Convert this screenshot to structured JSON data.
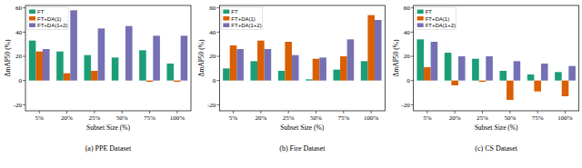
{
  "chart_data": [
    {
      "type": "bar",
      "title": "(a) PPE Dataset",
      "x_label": "Subset Size (%)",
      "y_label": "ΔmAP50 (%)",
      "categories": [
        "5%",
        "20%",
        "25%",
        "50%",
        "75%",
        "100%"
      ],
      "series": [
        {
          "name": "FT",
          "color": "#1b9e77",
          "values": [
            33,
            24,
            21,
            19,
            25,
            14
          ]
        },
        {
          "name": "FT+DA(1)",
          "color": "#d95f02",
          "values": [
            24,
            6,
            8,
            0,
            -1,
            -1
          ]
        },
        {
          "name": "FT+DA(1+2)",
          "color": "#7570b3",
          "values": [
            26,
            58,
            43,
            45,
            37,
            37
          ]
        }
      ],
      "ylim": [
        -25,
        62
      ],
      "yticks": [
        -20,
        0,
        20,
        40,
        60
      ],
      "grid": false,
      "legend": "upper left"
    },
    {
      "type": "bar",
      "title": "(b) Fire Dataset",
      "x_label": "Subset Size (%)",
      "y_label": "ΔmAP50 (%)",
      "categories": [
        "5%",
        "20%",
        "25%",
        "50%",
        "75%",
        "100%"
      ],
      "series": [
        {
          "name": "FT",
          "color": "#1b9e77",
          "values": [
            10,
            16,
            8,
            1,
            9,
            16
          ]
        },
        {
          "name": "FT+DA(1)",
          "color": "#d95f02",
          "values": [
            29,
            33,
            32,
            18,
            20,
            54
          ]
        },
        {
          "name": "FT+DA(1+2)",
          "color": "#7570b3",
          "values": [
            26,
            26,
            21,
            19,
            34,
            50
          ]
        }
      ],
      "ylim": [
        -25,
        62
      ],
      "yticks": [
        -20,
        0,
        20,
        40,
        60
      ],
      "grid": false,
      "legend": "upper left"
    },
    {
      "type": "bar",
      "title": "(c) CS Dataset",
      "x_label": "Subset Size (%)",
      "y_label": "ΔmAP50 (%)",
      "categories": [
        "5%",
        "20%",
        "25%",
        "50%",
        "75%",
        "100%"
      ],
      "series": [
        {
          "name": "FT",
          "color": "#1b9e77",
          "values": [
            34,
            23,
            18,
            8,
            5,
            7
          ]
        },
        {
          "name": "FT+DA(1)",
          "color": "#d95f02",
          "values": [
            11,
            -4,
            -1,
            -16,
            -9,
            -13
          ]
        },
        {
          "name": "FT+DA(1+2)",
          "color": "#7570b3",
          "values": [
            32,
            20,
            20,
            16,
            14,
            12
          ]
        }
      ],
      "ylim": [
        -25,
        62
      ],
      "yticks": [
        -20,
        0,
        20,
        40,
        60
      ],
      "grid": false,
      "legend": "upper left"
    }
  ]
}
